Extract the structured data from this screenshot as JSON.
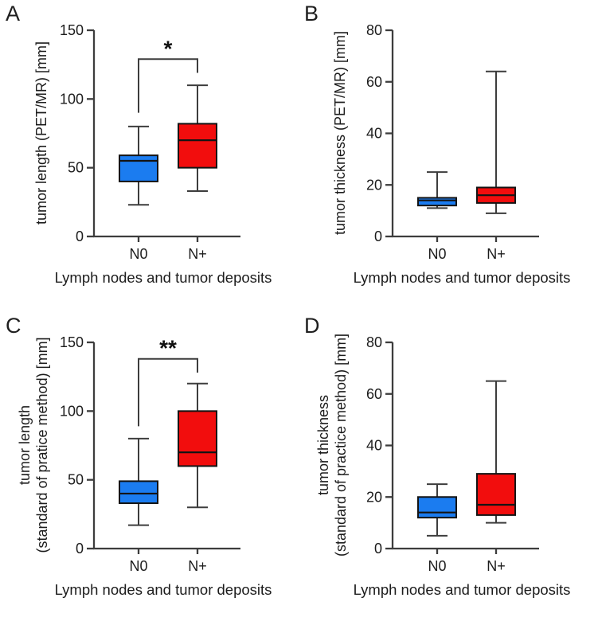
{
  "figure_title": "",
  "group_colors": {
    "N0": "#1b7cf0",
    "N_plus": "#f20d0d"
  },
  "chart_data": [
    {
      "type": "box",
      "panel": "A",
      "ylabel": "tumor length (PET/MR) [mm]",
      "ylabel_lines": [
        "tumor length (PET/MR) [mm]"
      ],
      "xlabel": "Lymph nodes and tumor deposits",
      "ylim": [
        0,
        150
      ],
      "yticks": [
        0,
        50,
        100,
        150
      ],
      "categories": [
        "N0",
        "N+"
      ],
      "series": [
        {
          "name": "N0",
          "color": "#1b7cf0",
          "whisker_low": 23,
          "q1": 40,
          "median": 55,
          "q3": 59,
          "whisker_high": 80
        },
        {
          "name": "N+",
          "color": "#f20d0d",
          "whisker_low": 33,
          "q1": 50,
          "median": 70,
          "q3": 82,
          "whisker_high": 110
        }
      ],
      "significance": {
        "label": "*",
        "bar_value": 129,
        "left_arm_bottom_value": 90,
        "right_arm_bottom_value": 119
      }
    },
    {
      "type": "box",
      "panel": "B",
      "ylabel": "tumor thickness (PET/MR) [mm]",
      "ylabel_lines": [
        "tumor thickness (PET/MR) [mm]"
      ],
      "xlabel": "Lymph nodes and tumor deposits",
      "ylim": [
        0,
        80
      ],
      "yticks": [
        0,
        20,
        40,
        60,
        80
      ],
      "categories": [
        "N0",
        "N+"
      ],
      "series": [
        {
          "name": "N0",
          "color": "#1b7cf0",
          "whisker_low": 11,
          "q1": 12,
          "median": 14,
          "q3": 15,
          "whisker_high": 25
        },
        {
          "name": "N+",
          "color": "#f20d0d",
          "whisker_low": 9,
          "q1": 13,
          "median": 16,
          "q3": 19,
          "whisker_high": 64
        }
      ],
      "significance": null
    },
    {
      "type": "box",
      "panel": "C",
      "ylabel": "tumor length (standard of pratice method) [mm]",
      "ylabel_lines": [
        "tumor length",
        "(standard of pratice method) [mm]"
      ],
      "xlabel": "Lymph nodes and tumor deposits",
      "ylim": [
        0,
        150
      ],
      "yticks": [
        0,
        50,
        100,
        150
      ],
      "categories": [
        "N0",
        "N+"
      ],
      "series": [
        {
          "name": "N0",
          "color": "#1b7cf0",
          "whisker_low": 17,
          "q1": 33,
          "median": 40,
          "q3": 49,
          "whisker_high": 80
        },
        {
          "name": "N+",
          "color": "#f20d0d",
          "whisker_low": 30,
          "q1": 60,
          "median": 70,
          "q3": 100,
          "whisker_high": 120
        }
      ],
      "significance": {
        "label": "**",
        "bar_value": 138,
        "left_arm_bottom_value": 89,
        "right_arm_bottom_value": 128
      }
    },
    {
      "type": "box",
      "panel": "D",
      "ylabel": "tumor thickness (standard of practice method) [mm]",
      "ylabel_lines": [
        "tumor thickness",
        "(standard of practice method) [mm]"
      ],
      "xlabel": "Lymph nodes and tumor deposits",
      "ylim": [
        0,
        80
      ],
      "yticks": [
        0,
        20,
        40,
        60,
        80
      ],
      "categories": [
        "N0",
        "N+"
      ],
      "series": [
        {
          "name": "N0",
          "color": "#1b7cf0",
          "whisker_low": 5,
          "q1": 12,
          "median": 14,
          "q3": 20,
          "whisker_high": 25
        },
        {
          "name": "N+",
          "color": "#f20d0d",
          "whisker_low": 10,
          "q1": 13,
          "median": 17,
          "q3": 29,
          "whisker_high": 65
        }
      ],
      "significance": null
    }
  ]
}
